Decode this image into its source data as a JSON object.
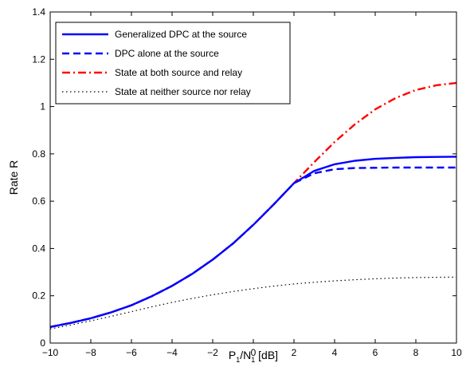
{
  "chart_data": {
    "type": "line",
    "title": "",
    "xlabel_main": "P",
    "xlabel_sub1": "1",
    "xlabel_mid": "/N",
    "xlabel_sub2": "1",
    "xlabel_tail": " [dB]",
    "ylabel": "Rate R",
    "xlim": [
      -10,
      10
    ],
    "ylim": [
      0,
      1.4
    ],
    "xticks": [
      -10,
      -8,
      -6,
      -4,
      -2,
      0,
      2,
      4,
      6,
      8,
      10
    ],
    "yticks": [
      0,
      0.2,
      0.4,
      0.6,
      0.8,
      1,
      1.2,
      1.4
    ],
    "xtick_labels": [
      "−10",
      "−8",
      "−6",
      "−4",
      "−2",
      "0",
      "2",
      "4",
      "6",
      "8",
      "10"
    ],
    "ytick_labels": [
      "0",
      "0.2",
      "0.4",
      "0.6",
      "0.8",
      "1",
      "1.2",
      "1.4"
    ],
    "grid": false,
    "box": true,
    "legend_position": "top-left",
    "x": [
      -10,
      -9,
      -8,
      -7,
      -6,
      -5,
      -4,
      -3,
      -2,
      -1,
      0,
      1,
      2,
      3,
      4,
      5,
      6,
      7,
      8,
      9,
      10
    ],
    "series": [
      {
        "name": "Generalized DPC at the source",
        "color": "#0000ff",
        "style": "solid",
        "values": [
          0.068,
          0.085,
          0.105,
          0.13,
          0.16,
          0.198,
          0.242,
          0.293,
          0.353,
          0.421,
          0.5,
          0.586,
          0.676,
          0.728,
          0.756,
          0.771,
          0.779,
          0.783,
          0.786,
          0.787,
          0.788
        ]
      },
      {
        "name": "DPC alone at the source",
        "color": "#0000ff",
        "style": "dashed",
        "values": [
          0.068,
          0.085,
          0.105,
          0.13,
          0.16,
          0.198,
          0.242,
          0.293,
          0.353,
          0.421,
          0.5,
          0.586,
          0.676,
          0.718,
          0.735,
          0.74,
          0.741,
          0.742,
          0.742,
          0.742,
          0.742
        ]
      },
      {
        "name": "State at both source and relay",
        "color": "#ff0000",
        "style": "dashdot",
        "values": [
          0.068,
          0.085,
          0.105,
          0.13,
          0.16,
          0.198,
          0.242,
          0.293,
          0.353,
          0.421,
          0.5,
          0.586,
          0.676,
          0.765,
          0.85,
          0.925,
          0.988,
          1.036,
          1.07,
          1.09,
          1.1
        ]
      },
      {
        "name": "State at neither source nor relay",
        "color": "#000000",
        "style": "dotted",
        "values": [
          0.06,
          0.076,
          0.094,
          0.113,
          0.133,
          0.153,
          0.172,
          0.189,
          0.204,
          0.218,
          0.23,
          0.241,
          0.25,
          0.257,
          0.263,
          0.268,
          0.272,
          0.275,
          0.277,
          0.278,
          0.279
        ]
      }
    ]
  }
}
